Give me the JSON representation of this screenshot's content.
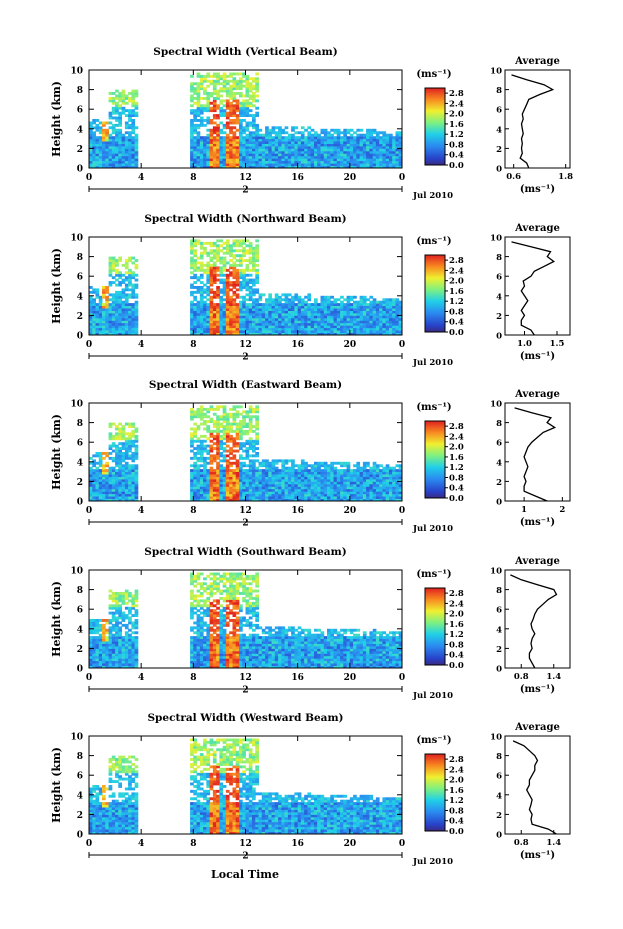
{
  "chart_data": [
    {
      "type": "heatmap",
      "title": "Spectral Width (Vertical Beam)",
      "ylabel": "Height (km)",
      "yticks": [
        "0",
        "2",
        "4",
        "6",
        "8",
        "10"
      ],
      "ylim": [
        0,
        10
      ],
      "xticks": [
        "0",
        "4",
        "8",
        "12",
        "16",
        "20",
        "0"
      ],
      "xlim": [
        0,
        24
      ],
      "date_label": "2",
      "month_label": "Jul 2010",
      "colorbar": {
        "unit": "(ms⁻¹)",
        "ticks": [
          "0.0",
          "0.4",
          "0.8",
          "1.2",
          "1.6",
          "2.0",
          "2.4",
          "2.8"
        ],
        "range": [
          0.0,
          3.0
        ]
      },
      "profile": {
        "title": "Average",
        "xlabel": "(ms⁻¹)",
        "xticks": [
          "0.6",
          "1.8"
        ],
        "xlim": [
          0.4,
          1.9
        ],
        "heights": [
          0.0,
          0.5,
          1.0,
          1.5,
          2.0,
          2.5,
          3.0,
          3.5,
          4.0,
          4.5,
          5.0,
          5.5,
          6.0,
          6.5,
          7.0,
          7.5,
          8.0,
          8.5,
          9.0,
          9.5
        ],
        "values": [
          0.95,
          0.9,
          0.75,
          0.8,
          0.78,
          0.8,
          0.78,
          0.82,
          0.8,
          0.78,
          0.82,
          0.8,
          0.85,
          0.9,
          0.95,
          1.2,
          1.5,
          1.3,
          0.9,
          0.55
        ]
      }
    },
    {
      "type": "heatmap",
      "title": "Spectral Width (Northward Beam)",
      "ylabel": "Height (km)",
      "yticks": [
        "0",
        "2",
        "4",
        "6",
        "8",
        "10"
      ],
      "ylim": [
        0,
        10
      ],
      "xticks": [
        "0",
        "4",
        "8",
        "12",
        "16",
        "20",
        "0"
      ],
      "xlim": [
        0,
        24
      ],
      "date_label": "2",
      "month_label": "Jul 2010",
      "colorbar": {
        "unit": "(ms⁻¹)",
        "ticks": [
          "0.0",
          "0.4",
          "0.8",
          "1.2",
          "1.6",
          "2.0",
          "2.4",
          "2.8"
        ],
        "range": [
          0.0,
          3.0
        ]
      },
      "profile": {
        "title": "Average",
        "xlabel": "(ms⁻¹)",
        "xticks": [
          "1.0",
          "1.5"
        ],
        "xlim": [
          0.7,
          1.7
        ],
        "heights": [
          0.0,
          0.5,
          1.0,
          1.5,
          2.0,
          2.5,
          3.0,
          3.5,
          4.0,
          4.5,
          5.0,
          5.5,
          6.0,
          6.5,
          7.0,
          7.5,
          8.0,
          8.5,
          9.0,
          9.5
        ],
        "values": [
          1.15,
          1.1,
          0.95,
          0.95,
          1.0,
          0.95,
          1.0,
          1.05,
          1.0,
          0.95,
          1.0,
          0.98,
          1.1,
          1.15,
          1.3,
          1.45,
          1.35,
          1.4,
          1.1,
          0.8
        ]
      }
    },
    {
      "type": "heatmap",
      "title": "Spectral Width (Eastward Beam)",
      "ylabel": "Height (km)",
      "yticks": [
        "0",
        "2",
        "4",
        "6",
        "8",
        "10"
      ],
      "ylim": [
        0,
        10
      ],
      "xticks": [
        "0",
        "4",
        "8",
        "12",
        "16",
        "20",
        "0"
      ],
      "xlim": [
        0,
        24
      ],
      "date_label": "2",
      "month_label": "Jul 2010",
      "colorbar": {
        "unit": "(ms⁻¹)",
        "ticks": [
          "0.0",
          "0.4",
          "0.8",
          "1.2",
          "1.6",
          "2.0",
          "2.4",
          "2.8"
        ],
        "range": [
          0.0,
          3.0
        ]
      },
      "profile": {
        "title": "Average",
        "xlabel": "(ms⁻¹)",
        "xticks": [
          "1",
          "2"
        ],
        "xlim": [
          0.5,
          2.2
        ],
        "heights": [
          0.0,
          0.5,
          1.0,
          1.5,
          2.0,
          2.5,
          3.0,
          3.5,
          4.0,
          4.5,
          5.0,
          5.5,
          6.0,
          6.5,
          7.0,
          7.5,
          8.0,
          8.5,
          9.0,
          9.5
        ],
        "values": [
          1.6,
          1.3,
          1.0,
          1.0,
          1.05,
          1.0,
          1.05,
          1.1,
          1.05,
          1.0,
          1.05,
          1.1,
          1.2,
          1.35,
          1.5,
          1.8,
          1.6,
          1.7,
          1.2,
          0.75
        ]
      }
    },
    {
      "type": "heatmap",
      "title": "Spectral Width (Southward Beam)",
      "ylabel": "Height (km)",
      "yticks": [
        "0",
        "2",
        "4",
        "6",
        "8",
        "10"
      ],
      "ylim": [
        0,
        10
      ],
      "xticks": [
        "0",
        "4",
        "8",
        "12",
        "16",
        "20",
        "0"
      ],
      "xlim": [
        0,
        24
      ],
      "date_label": "2",
      "month_label": "Jul 2010",
      "colorbar": {
        "unit": "(ms⁻¹)",
        "ticks": [
          "0.0",
          "0.4",
          "0.8",
          "1.2",
          "1.6",
          "2.0",
          "2.4",
          "2.8"
        ],
        "range": [
          0.0,
          3.0
        ]
      },
      "profile": {
        "title": "Average",
        "xlabel": "(ms⁻¹)",
        "xticks": [
          "0.8",
          "1.4"
        ],
        "xlim": [
          0.5,
          1.7
        ],
        "heights": [
          0.0,
          0.5,
          1.0,
          1.5,
          2.0,
          2.5,
          3.0,
          3.5,
          4.0,
          4.5,
          5.0,
          5.5,
          6.0,
          6.5,
          7.0,
          7.5,
          8.0,
          8.5,
          9.0,
          9.5
        ],
        "values": [
          1.05,
          1.0,
          0.95,
          0.95,
          1.0,
          0.98,
          1.0,
          1.05,
          1.0,
          0.98,
          1.02,
          1.05,
          1.1,
          1.2,
          1.3,
          1.45,
          1.4,
          1.1,
          0.8,
          0.6
        ]
      }
    },
    {
      "type": "heatmap",
      "title": "Spectral Width (Westward Beam)",
      "ylabel": "Height (km)",
      "yticks": [
        "0",
        "2",
        "4",
        "6",
        "8",
        "10"
      ],
      "ylim": [
        0,
        10
      ],
      "xticks": [
        "0",
        "4",
        "8",
        "12",
        "16",
        "20",
        "0"
      ],
      "xlim": [
        0,
        24
      ],
      "date_label": "2",
      "month_label": "Jul 2010",
      "colorbar": {
        "unit": "(ms⁻¹)",
        "ticks": [
          "0.0",
          "0.4",
          "0.8",
          "1.2",
          "1.6",
          "2.0",
          "2.4",
          "2.8"
        ],
        "range": [
          0.0,
          3.0
        ]
      },
      "profile": {
        "title": "Average",
        "xlabel": "(ms⁻¹)",
        "xticks": [
          "0.8",
          "1.4"
        ],
        "xlim": [
          0.5,
          1.7
        ],
        "heights": [
          0.0,
          0.5,
          1.0,
          1.5,
          2.0,
          2.5,
          3.0,
          3.5,
          4.0,
          4.5,
          5.0,
          5.5,
          6.0,
          6.5,
          7.0,
          7.5,
          8.0,
          8.5,
          9.0,
          9.5
        ],
        "values": [
          1.45,
          1.3,
          1.0,
          0.98,
          1.0,
          0.95,
          0.98,
          1.0,
          0.95,
          0.9,
          0.95,
          0.95,
          1.0,
          1.05,
          1.05,
          1.1,
          1.05,
          0.95,
          0.85,
          0.65
        ]
      }
    }
  ],
  "xlabel": "Local Time"
}
